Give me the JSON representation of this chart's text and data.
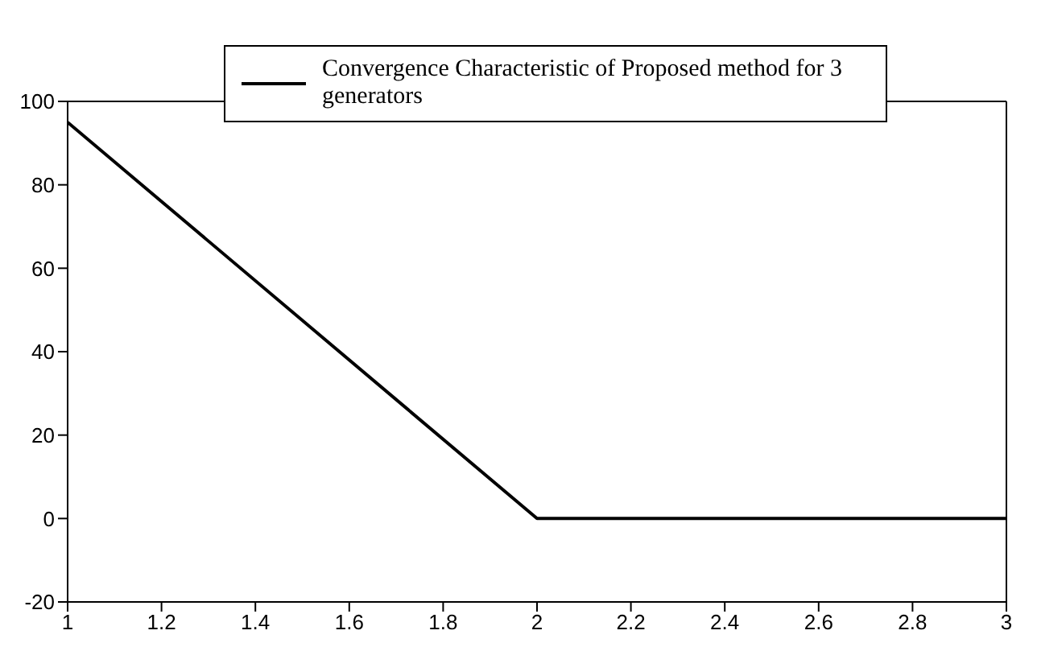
{
  "chart_data": {
    "type": "line",
    "x": [
      1,
      2,
      3
    ],
    "series": [
      {
        "name": "Convergence Characteristic of Proposed method for 3 generators",
        "color": "#000000",
        "values": [
          95,
          0,
          0
        ]
      }
    ],
    "xlim": [
      1,
      3
    ],
    "xticks": [
      1,
      1.2,
      1.4,
      1.6,
      1.8,
      2,
      2.2,
      2.4,
      2.6,
      2.8,
      3
    ],
    "ylim": [
      -20,
      100
    ],
    "yticks": [
      -20,
      0,
      20,
      40,
      60,
      80,
      100
    ],
    "grid": false,
    "legend": "top right",
    "marker": "none",
    "line_style": "solid"
  }
}
